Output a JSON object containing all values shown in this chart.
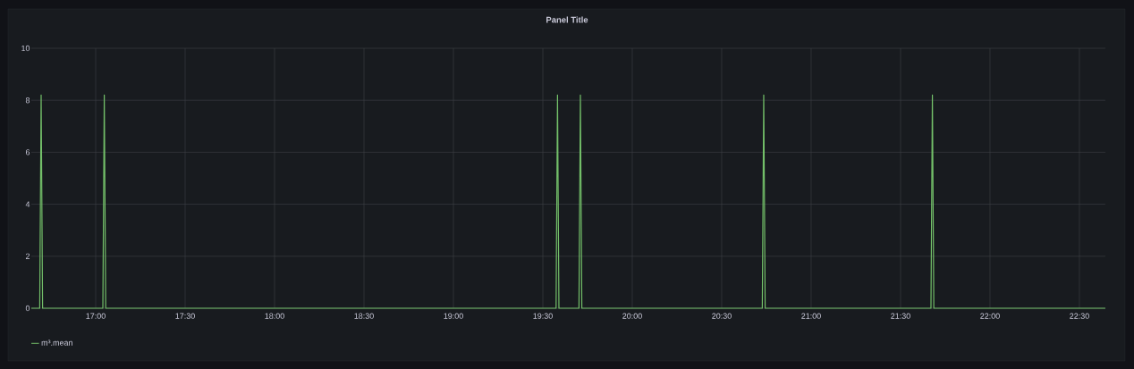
{
  "chart_data": {
    "type": "line",
    "title": "Panel Title",
    "xlim": [
      16.64,
      22.645
    ],
    "xticks": [
      {
        "value": 17,
        "label": "17:00"
      },
      {
        "value": 17.5,
        "label": "17:30"
      },
      {
        "value": 18,
        "label": "18:00"
      },
      {
        "value": 18.5,
        "label": "18:30"
      },
      {
        "value": 19,
        "label": "19:00"
      },
      {
        "value": 19.5,
        "label": "19:30"
      },
      {
        "value": 20,
        "label": "20:00"
      },
      {
        "value": 20.5,
        "label": "20:30"
      },
      {
        "value": 21,
        "label": "21:00"
      },
      {
        "value": 21.5,
        "label": "21:30"
      },
      {
        "value": 22,
        "label": "22:00"
      },
      {
        "value": 22.5,
        "label": "22:30"
      }
    ],
    "ylim": [
      0,
      10
    ],
    "yticks": [
      0,
      2,
      4,
      6,
      8,
      10
    ],
    "grid": true,
    "legend": "bottom left",
    "marker": "none",
    "line_style": "solid",
    "series": [
      {
        "name": "m³.mean",
        "color": "#73bf69",
        "x": [
          16.64,
          16.687,
          16.695,
          16.703,
          17.04,
          17.048,
          17.056,
          19.574,
          19.582,
          19.59,
          19.702,
          19.71,
          19.718,
          20.727,
          20.735,
          20.743,
          21.67,
          21.678,
          21.686,
          22.645
        ],
        "values": [
          0,
          0,
          8.2,
          0,
          0,
          8.2,
          0,
          0,
          8.2,
          0,
          0,
          8.2,
          0,
          0,
          8.2,
          0,
          0,
          8.2,
          0,
          0
        ]
      }
    ]
  }
}
